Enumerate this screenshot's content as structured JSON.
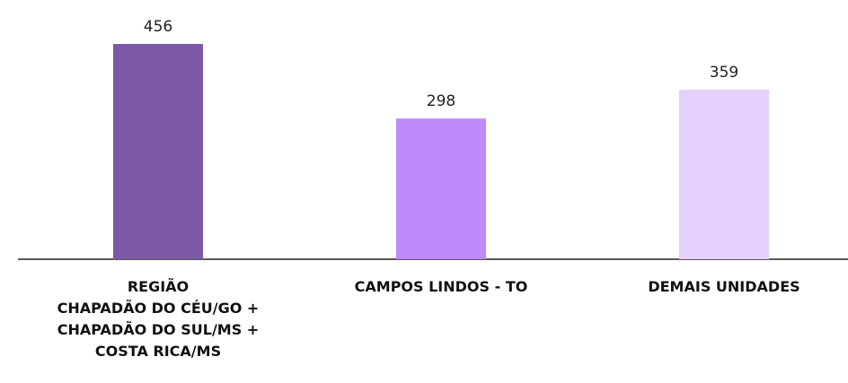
{
  "chart_data": {
    "type": "bar",
    "categories": [
      "REGIÃO\nCHAPADÃO DO CÉU/GO +\nCHAPADÃO DO SUL/MS +\nCOSTA RICA/MS",
      "CAMPOS LINDOS - TO",
      "DEMAIS UNIDADES"
    ],
    "values": [
      456,
      298,
      359
    ],
    "colors": [
      "#7b59a6",
      "#bf8afc",
      "#e6d0fc"
    ]
  }
}
